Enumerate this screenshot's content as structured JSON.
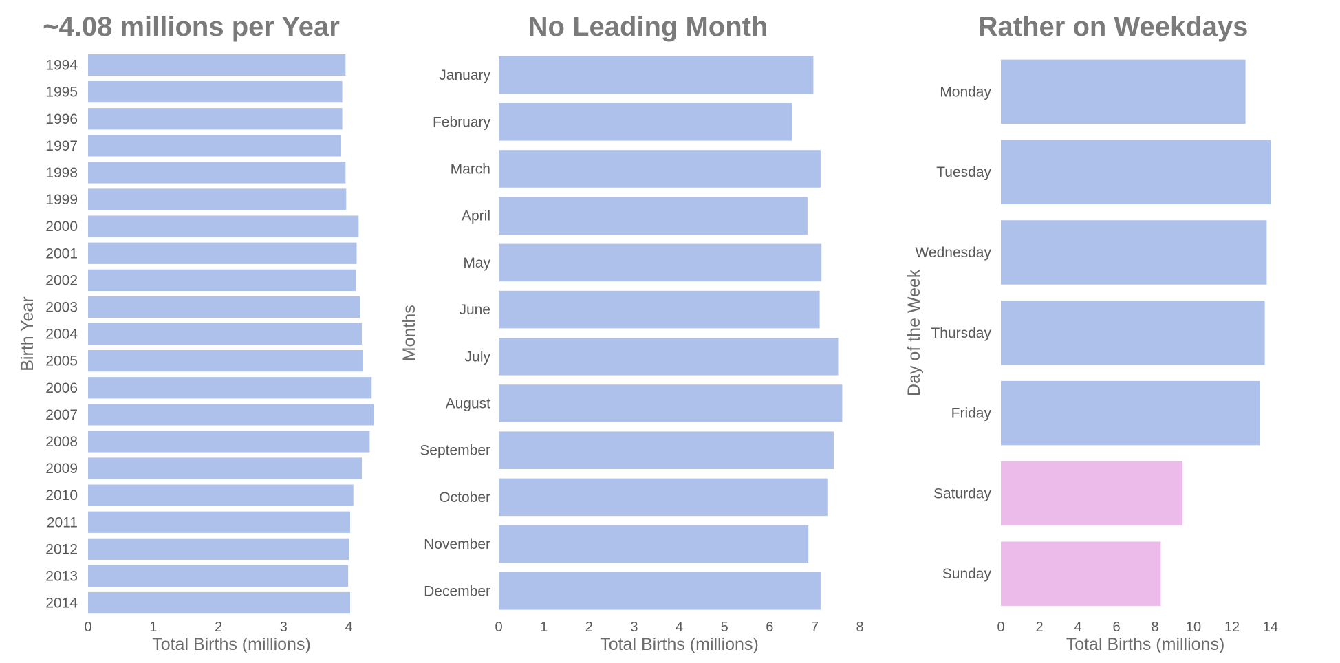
{
  "chart_data": [
    {
      "type": "bar",
      "orientation": "horizontal",
      "title": "~4.08 millions per Year",
      "xlabel": "Total Births (millions)",
      "ylabel": "Birth Year",
      "xlim": [
        0,
        4.4
      ],
      "xticks": [
        "0",
        "1",
        "2",
        "3",
        "4"
      ],
      "categories": [
        "1994",
        "1995",
        "1996",
        "1997",
        "1998",
        "1999",
        "2000",
        "2001",
        "2002",
        "2003",
        "2004",
        "2005",
        "2006",
        "2007",
        "2008",
        "2009",
        "2010",
        "2011",
        "2012",
        "2013",
        "2014"
      ],
      "values": [
        3.95,
        3.9,
        3.9,
        3.88,
        3.95,
        3.96,
        4.15,
        4.12,
        4.11,
        4.17,
        4.2,
        4.22,
        4.35,
        4.38,
        4.32,
        4.2,
        4.07,
        4.02,
        4.0,
        3.99,
        4.02
      ],
      "colors": [
        "#aec1ea",
        "#aec1ea",
        "#aec1ea",
        "#aec1ea",
        "#aec1ea",
        "#aec1ea",
        "#aec1ea",
        "#aec1ea",
        "#aec1ea",
        "#aec1ea",
        "#aec1ea",
        "#aec1ea",
        "#aec1ea",
        "#aec1ea",
        "#aec1ea",
        "#aec1ea",
        "#aec1ea",
        "#aec1ea",
        "#aec1ea",
        "#aec1ea",
        "#aec1ea"
      ],
      "grid": false
    },
    {
      "type": "bar",
      "orientation": "horizontal",
      "title": "No Leading Month",
      "xlabel": "Total Births (millions)",
      "ylabel": "Months",
      "xlim": [
        0,
        8
      ],
      "xticks": [
        "0",
        "1",
        "2",
        "3",
        "4",
        "5",
        "6",
        "7",
        "8"
      ],
      "categories": [
        "January",
        "February",
        "March",
        "April",
        "May",
        "June",
        "July",
        "August",
        "September",
        "October",
        "November",
        "December"
      ],
      "values": [
        6.97,
        6.5,
        7.13,
        6.84,
        7.15,
        7.11,
        7.52,
        7.61,
        7.42,
        7.28,
        6.86,
        7.13
      ],
      "colors": [
        "#aec1ea",
        "#aec1ea",
        "#aec1ea",
        "#aec1ea",
        "#aec1ea",
        "#aec1ea",
        "#aec1ea",
        "#aec1ea",
        "#aec1ea",
        "#aec1ea",
        "#aec1ea",
        "#aec1ea"
      ],
      "grid": false
    },
    {
      "type": "bar",
      "orientation": "horizontal",
      "title": "Rather on Weekdays",
      "xlabel": "Total Births (millions)",
      "ylabel": "Day of the Week",
      "xlim": [
        0,
        15
      ],
      "xticks": [
        "0",
        "2",
        "4",
        "6",
        "8",
        "10",
        "12",
        "14"
      ],
      "categories": [
        "Monday",
        "Tuesday",
        "Wednesday",
        "Thursday",
        "Friday",
        "Saturday",
        "Sunday"
      ],
      "values": [
        12.7,
        14.0,
        13.8,
        13.7,
        13.45,
        9.43,
        8.3
      ],
      "colors": [
        "#aec1ea",
        "#aec1ea",
        "#aec1ea",
        "#aec1ea",
        "#aec1ea",
        "#ecbbea",
        "#ecbbea"
      ],
      "grid": false
    }
  ]
}
